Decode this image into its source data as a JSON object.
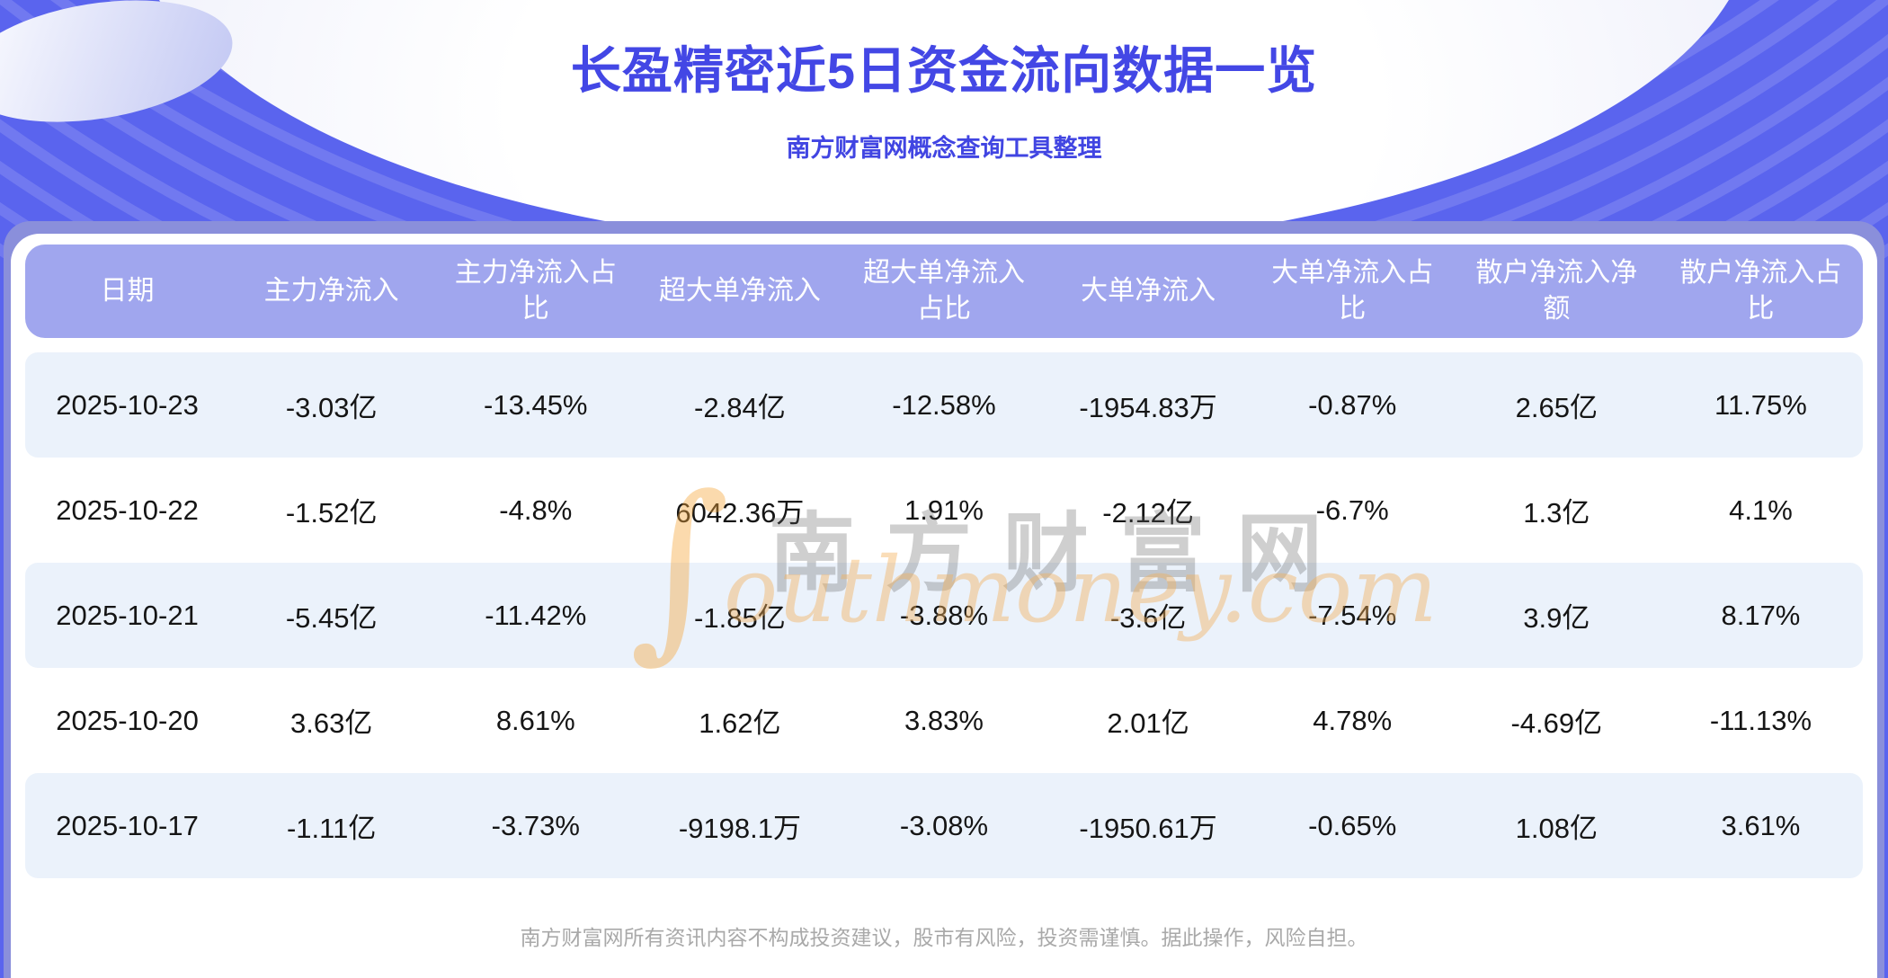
{
  "header": {
    "title": "长盈精密近5日资金流向数据一览",
    "subtitle": "南方财富网概念查询工具整理"
  },
  "chart_data": {
    "type": "table",
    "title": "长盈精密近5日资金流向数据一览",
    "subtitle": "南方财富网概念查询工具整理",
    "columns": [
      "日期",
      "主力净流入",
      "主力净流入占比",
      "超大单净流入",
      "超大单净流入占比",
      "大单净流入",
      "大单净流入占比",
      "散户净流入净额",
      "散户净流入占比"
    ],
    "rows": [
      [
        "2025-10-23",
        "-3.03亿",
        "-13.45%",
        "-2.84亿",
        "-12.58%",
        "-1954.83万",
        "-0.87%",
        "2.65亿",
        "11.75%"
      ],
      [
        "2025-10-22",
        "-1.52亿",
        "-4.8%",
        "6042.36万",
        "1.91%",
        "-2.12亿",
        "-6.7%",
        "1.3亿",
        "4.1%"
      ],
      [
        "2025-10-21",
        "-5.45亿",
        "-11.42%",
        "-1.85亿",
        "-3.88%",
        "-3.6亿",
        "-7.54%",
        "3.9亿",
        "8.17%"
      ],
      [
        "2025-10-20",
        "3.63亿",
        "8.61%",
        "1.62亿",
        "3.83%",
        "2.01亿",
        "4.78%",
        "-4.69亿",
        "-11.13%"
      ],
      [
        "2025-10-17",
        "-1.11亿",
        "-3.73%",
        "-9198.1万",
        "-3.08%",
        "-1950.61万",
        "-0.65%",
        "1.08亿",
        "3.61%"
      ]
    ]
  },
  "watermark": {
    "swoosh": "∫",
    "cn": "南方财富网",
    "en": "outhmoney.com"
  },
  "footer": {
    "disclaimer": "南方财富网所有资讯内容不构成投资建议，股市有风险，投资需谨慎。据此操作，风险自担。"
  },
  "colors": {
    "background": "#5A64EE",
    "band": "#8A8FDB",
    "card": "#FFFFFF",
    "table_header_bg": "#A0A6EE",
    "row_stripe": "#EBF2FB",
    "title": "#4347E5",
    "watermark_orange": "#F5A63C"
  }
}
